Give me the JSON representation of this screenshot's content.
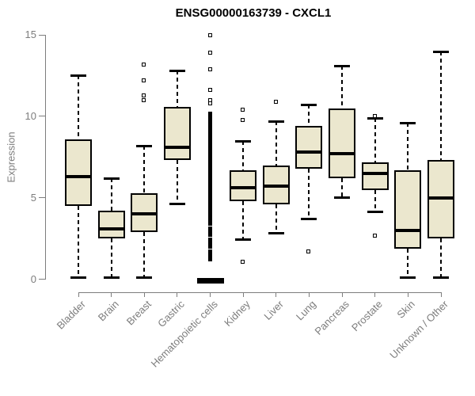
{
  "title": "ENSG00000163739 - CXCL1",
  "chart_data": {
    "type": "boxplot",
    "title": "ENSG00000163739 - CXCL1",
    "xlabel": "",
    "ylabel": "Expression",
    "ylim": [
      0,
      15
    ],
    "yticks": [
      0,
      5,
      10,
      15
    ],
    "grid": false,
    "legend": false,
    "colors": {
      "box_fill": "#EBE7CE",
      "box_border": "#000000",
      "median": "#000000",
      "axis": "#7d7d7d",
      "label_text": "#7d7d7d",
      "title_text": "#000000"
    },
    "categories": [
      "Bladder",
      "Brain",
      "Breast",
      "Gastric",
      "Hematopoietic cells",
      "Kidney",
      "Liver",
      "Lung",
      "Pancreas",
      "Prostate",
      "Skin",
      "Unknown / Other"
    ],
    "series": [
      {
        "category": "Bladder",
        "whisker_low": 0.1,
        "q1": 4.5,
        "median": 6.3,
        "q3": 8.6,
        "whisker_high": 12.5,
        "outliers": [],
        "outlier_runs": []
      },
      {
        "category": "Brain",
        "whisker_low": 0.1,
        "q1": 2.5,
        "median": 3.1,
        "q3": 4.2,
        "whisker_high": 6.2,
        "outliers": [],
        "outlier_runs": []
      },
      {
        "category": "Breast",
        "whisker_low": 0.1,
        "q1": 2.9,
        "median": 4.0,
        "q3": 5.3,
        "whisker_high": 8.2,
        "outliers": [
          13.2,
          12.2,
          11.3,
          11.0
        ],
        "outlier_runs": []
      },
      {
        "category": "Gastric",
        "whisker_low": 4.6,
        "q1": 7.3,
        "median": 8.1,
        "q3": 10.6,
        "whisker_high": 12.8,
        "outliers": [],
        "outlier_runs": []
      },
      {
        "category": "Hematopoietic cells",
        "whisker_low": 0,
        "q1": 0,
        "median": 0,
        "q3": 0,
        "whisker_high": 0,
        "outliers": [
          15.0,
          13.9,
          12.9,
          11.6,
          11.0,
          10.8
        ],
        "outlier_runs": [
          [
            3.4,
            10.3,
            0.07
          ],
          [
            2.7,
            3.2,
            0.07
          ],
          [
            2.0,
            2.5,
            0.07
          ],
          [
            1.2,
            1.8,
            0.07
          ]
        ]
      },
      {
        "category": "Kidney",
        "whisker_low": 2.4,
        "q1": 4.8,
        "median": 5.6,
        "q3": 6.7,
        "whisker_high": 8.5,
        "outliers": [
          10.4,
          9.8,
          1.1
        ],
        "outlier_runs": []
      },
      {
        "category": "Liver",
        "whisker_low": 2.8,
        "q1": 4.6,
        "median": 5.7,
        "q3": 7.0,
        "whisker_high": 9.7,
        "outliers": [
          10.9
        ],
        "outlier_runs": []
      },
      {
        "category": "Lung",
        "whisker_low": 3.7,
        "q1": 6.8,
        "median": 7.8,
        "q3": 9.4,
        "whisker_high": 10.7,
        "outliers": [
          1.7
        ],
        "outlier_runs": []
      },
      {
        "category": "Pancreas",
        "whisker_low": 5.0,
        "q1": 6.2,
        "median": 7.7,
        "q3": 10.5,
        "whisker_high": 13.1,
        "outliers": [],
        "outlier_runs": []
      },
      {
        "category": "Prostate",
        "whisker_low": 4.1,
        "q1": 5.5,
        "median": 6.5,
        "q3": 7.2,
        "whisker_high": 9.9,
        "outliers": [
          10.0,
          2.7
        ],
        "outlier_runs": []
      },
      {
        "category": "Skin",
        "whisker_low": 0.1,
        "q1": 1.9,
        "median": 3.0,
        "q3": 6.7,
        "whisker_high": 9.6,
        "outliers": [],
        "outlier_runs": []
      },
      {
        "category": "Unknown / Other",
        "whisker_low": 0.1,
        "q1": 2.5,
        "median": 5.0,
        "q3": 7.3,
        "whisker_high": 14.0,
        "outliers": [],
        "outlier_runs": []
      }
    ]
  }
}
